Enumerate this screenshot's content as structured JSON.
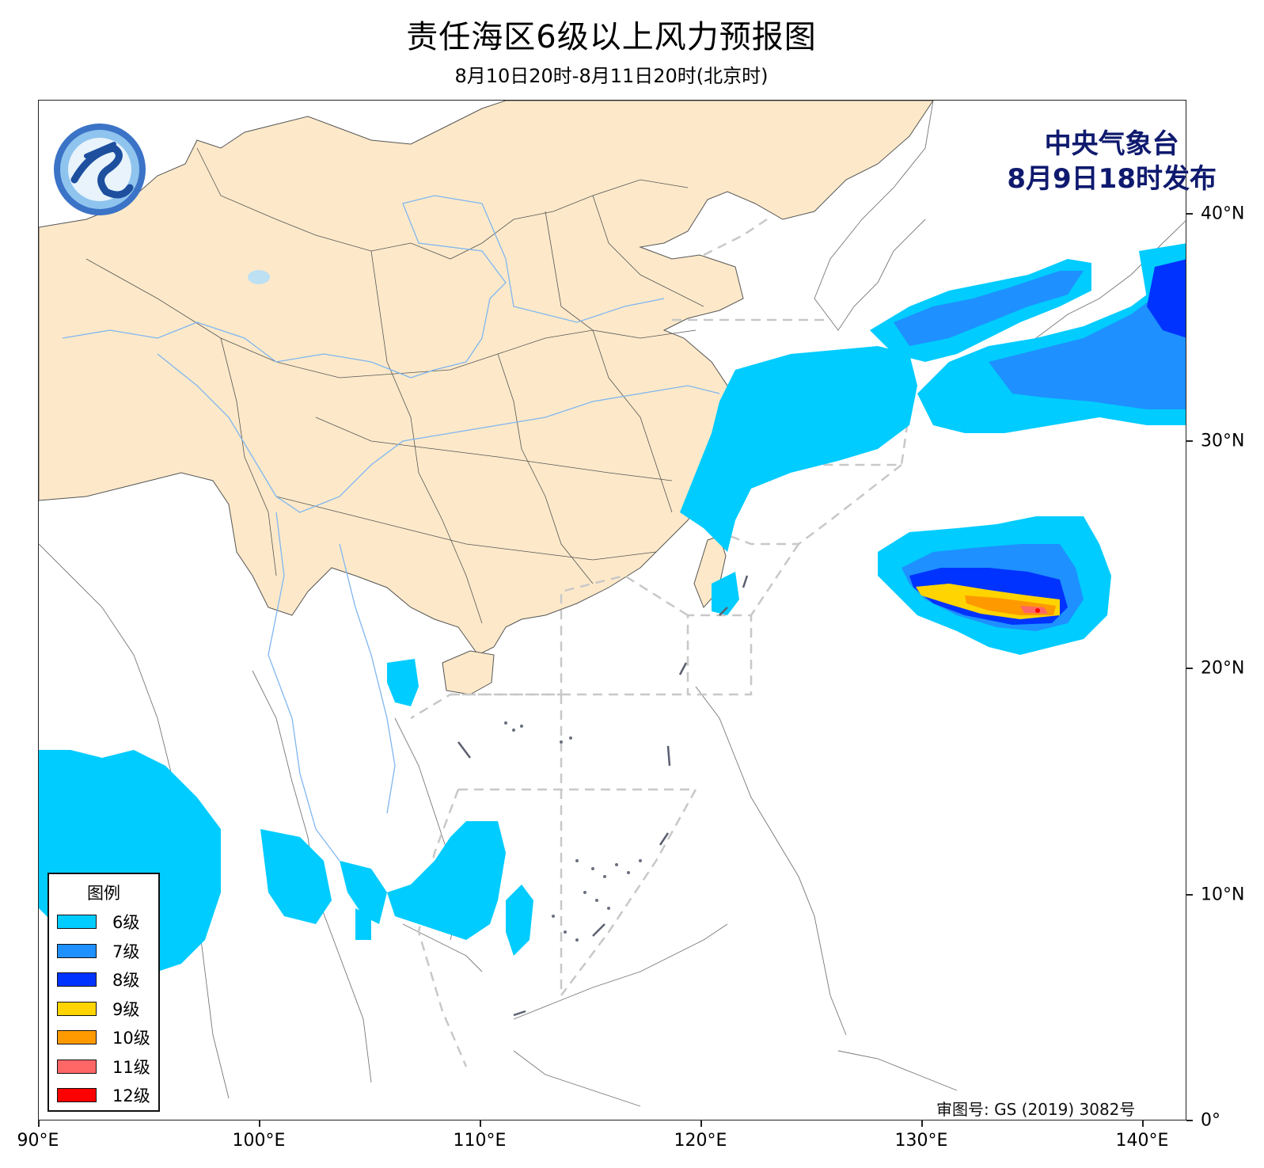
{
  "title": "责任海区6级以上风力预报图",
  "subtitle": "8月10日20时-8月11日20时(北京时)",
  "issuer": {
    "name": "中央气象台",
    "time": "8月9日18时发布"
  },
  "review_number": "审图号: GS (2019) 3082号",
  "legend": {
    "title": "图例",
    "items": [
      {
        "label": "6级",
        "color": "#00ccff"
      },
      {
        "label": "7级",
        "color": "#1e90ff"
      },
      {
        "label": "8级",
        "color": "#0033ff"
      },
      {
        "label": "9级",
        "color": "#ffd400"
      },
      {
        "label": "10级",
        "color": "#ff9900"
      },
      {
        "label": "11级",
        "color": "#ff6666"
      },
      {
        "label": "12级",
        "color": "#ff0000"
      }
    ]
  },
  "axes": {
    "x_ticks": [
      "90°E",
      "100°E",
      "110°E",
      "120°E",
      "130°E",
      "140°E"
    ],
    "y_ticks": [
      "40°N",
      "30°N",
      "20°N",
      "10°N",
      "0°"
    ],
    "lon_range": [
      90,
      142
    ],
    "lat_range": [
      0,
      45
    ]
  },
  "colors": {
    "china_land": "#fde9c9",
    "other_land": "#ffffff",
    "border": "#555555",
    "river": "#7fb6f0",
    "zone_line": "#cccccc",
    "issuer_text": "#0f1a6e"
  },
  "wind_areas": [
    {
      "level": "6级",
      "region": "黄海-东海-日本以南"
    },
    {
      "level": "6-8级",
      "region": "日本本州南部"
    },
    {
      "level": "6-11级",
      "region": "西北太平洋台风区"
    },
    {
      "level": "6级",
      "region": "南海南部及孟加拉湾"
    }
  ],
  "logo_icon": "cma-logo-icon"
}
